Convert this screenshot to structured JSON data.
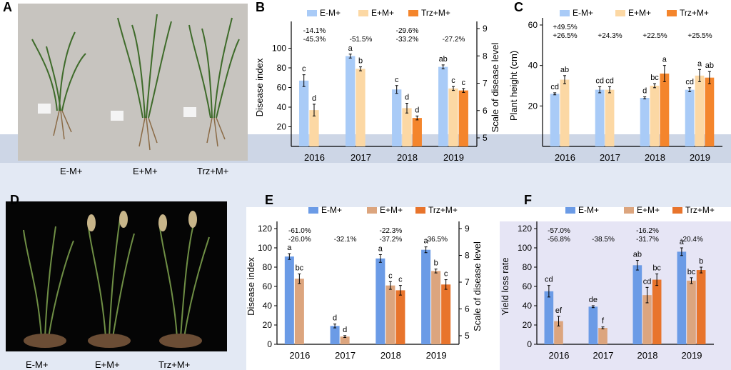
{
  "panel_letters": {
    "A": "A",
    "B": "B",
    "C": "C",
    "D": "D",
    "E": "E",
    "F": "F"
  },
  "photo_a_labels": [
    "E-M+",
    "E+M+",
    "Trz+M+"
  ],
  "photo_d_labels": [
    "E-M+",
    "E+M+",
    "Trz+M+"
  ],
  "colors": {
    "e_minus": "#a9cbf7",
    "e_plus_b": "#fcd8a4",
    "trz_b": "#f4852c",
    "e_minus_dark": "#6b9be6",
    "e_plus_dark": "#dca57e",
    "trz_dark": "#e8742c",
    "band_light": "#dfe6f2",
    "band_mid": "#c9d3e6"
  },
  "chart_data": [
    {
      "id": "B",
      "type": "bar",
      "categories": [
        "2016",
        "2017",
        "2018",
        "2019"
      ],
      "ylabel": "Disease index",
      "y2label": "Scale of disease level",
      "ylim": [
        0,
        120
      ],
      "yticks": [
        20,
        40,
        60,
        80,
        100
      ],
      "y2ticks": [
        "5",
        "6",
        "7",
        "8",
        "9"
      ],
      "legend": [
        "E-M+",
        "E+M+",
        "Trz+M+"
      ],
      "series": [
        {
          "name": "E-M+",
          "values": [
            67,
            92,
            58,
            81
          ],
          "errors": [
            6,
            2,
            4,
            2
          ],
          "letters": [
            "c",
            "a",
            "c",
            "ab"
          ]
        },
        {
          "name": "E+M+",
          "values": [
            37,
            79,
            39,
            59
          ],
          "errors": [
            6,
            2,
            5,
            2
          ],
          "letters": [
            "d",
            "b",
            "d",
            "c"
          ]
        },
        {
          "name": "Trz+M+",
          "values": [
            null,
            null,
            29,
            57
          ],
          "errors": [
            0,
            0,
            2,
            2
          ],
          "letters": [
            "",
            "",
            "d",
            "c"
          ]
        }
      ],
      "annotations": [
        "-45.3%",
        "-14.1%",
        "-51.5%",
        "-33.2%",
        "-29.6%",
        "-27.2%"
      ]
    },
    {
      "id": "C",
      "type": "bar",
      "categories": [
        "2016",
        "2017",
        "2018",
        "2019"
      ],
      "ylabel": "Plant height (cm)",
      "ylim": [
        0,
        60
      ],
      "yticks": [
        20,
        40,
        60
      ],
      "legend": [
        "E-M+",
        "E+M+",
        "Trz+M+"
      ],
      "series": [
        {
          "name": "E-M+",
          "values": [
            26,
            28,
            24,
            28
          ],
          "errors": [
            0.5,
            1.5,
            0.5,
            1
          ],
          "letters": [
            "cd",
            "cd",
            "d",
            "cd"
          ]
        },
        {
          "name": "E+M+",
          "values": [
            33,
            28,
            30,
            35
          ],
          "errors": [
            2,
            1.5,
            1,
            3
          ],
          "letters": [
            "ab",
            "cd",
            "bc",
            "a"
          ]
        },
        {
          "name": "Trz+M+",
          "values": [
            null,
            null,
            36,
            34
          ],
          "errors": [
            0,
            0,
            4,
            3
          ],
          "letters": [
            "",
            "",
            "a",
            "ab"
          ]
        }
      ],
      "annotations": [
        "+26.5%",
        "+49.5%",
        "+24.3%",
        "+22.5%",
        "+25.5%"
      ]
    },
    {
      "id": "E",
      "type": "bar",
      "categories": [
        "2016",
        "2017",
        "2018",
        "2019"
      ],
      "ylabel": "Disease index",
      "y2label": "Scale of disease level",
      "ylim": [
        0,
        120
      ],
      "yticks": [
        0,
        20,
        40,
        60,
        80,
        100,
        120
      ],
      "y2ticks": [
        "5",
        "6",
        "7",
        "8",
        "9"
      ],
      "legend": [
        "E-M+",
        "E+M+",
        "Trz+M+"
      ],
      "series": [
        {
          "name": "E-M+",
          "values": [
            91,
            19,
            89,
            98
          ],
          "errors": [
            3,
            2,
            4,
            3
          ],
          "letters": [
            "a",
            "d",
            "a",
            "a"
          ]
        },
        {
          "name": "E+M+",
          "values": [
            68,
            8,
            61,
            76
          ],
          "errors": [
            5,
            1,
            4,
            2
          ],
          "letters": [
            "bc",
            "d",
            "c",
            "b"
          ]
        },
        {
          "name": "Trz+M+",
          "values": [
            null,
            null,
            56,
            62
          ],
          "errors": [
            0,
            0,
            5,
            5
          ],
          "letters": [
            "",
            "",
            "c",
            "c"
          ]
        }
      ],
      "annotations": [
        "-26.0%",
        "-61.0%",
        "-32.1%",
        "-37.2%",
        "-22.3%",
        "-36.5%"
      ]
    },
    {
      "id": "F",
      "type": "bar",
      "categories": [
        "2016",
        "2017",
        "2018",
        "2019"
      ],
      "ylabel": "Yield loss rate",
      "ylim": [
        0,
        120
      ],
      "yticks": [
        0,
        20,
        40,
        60,
        80,
        100,
        120
      ],
      "legend": [
        "E-M+",
        "E+M+",
        "Trz+M+"
      ],
      "series": [
        {
          "name": "E-M+",
          "values": [
            55,
            39,
            82,
            96
          ],
          "errors": [
            6,
            1,
            5,
            4
          ],
          "letters": [
            "cd",
            "de",
            "ab",
            "a"
          ]
        },
        {
          "name": "E+M+",
          "values": [
            24,
            17,
            51,
            66
          ],
          "errors": [
            5,
            1,
            8,
            3
          ],
          "letters": [
            "ef",
            "f",
            "cd",
            "bc"
          ]
        },
        {
          "name": "Trz+M+",
          "values": [
            null,
            null,
            67,
            77
          ],
          "errors": [
            0,
            0,
            6,
            3
          ],
          "letters": [
            "",
            "",
            "bc",
            "b"
          ]
        }
      ],
      "annotations": [
        "-56.8%",
        "-57.0%",
        "-38.5%",
        "-31.7%",
        "-16.2%",
        "-20.4%"
      ]
    }
  ]
}
